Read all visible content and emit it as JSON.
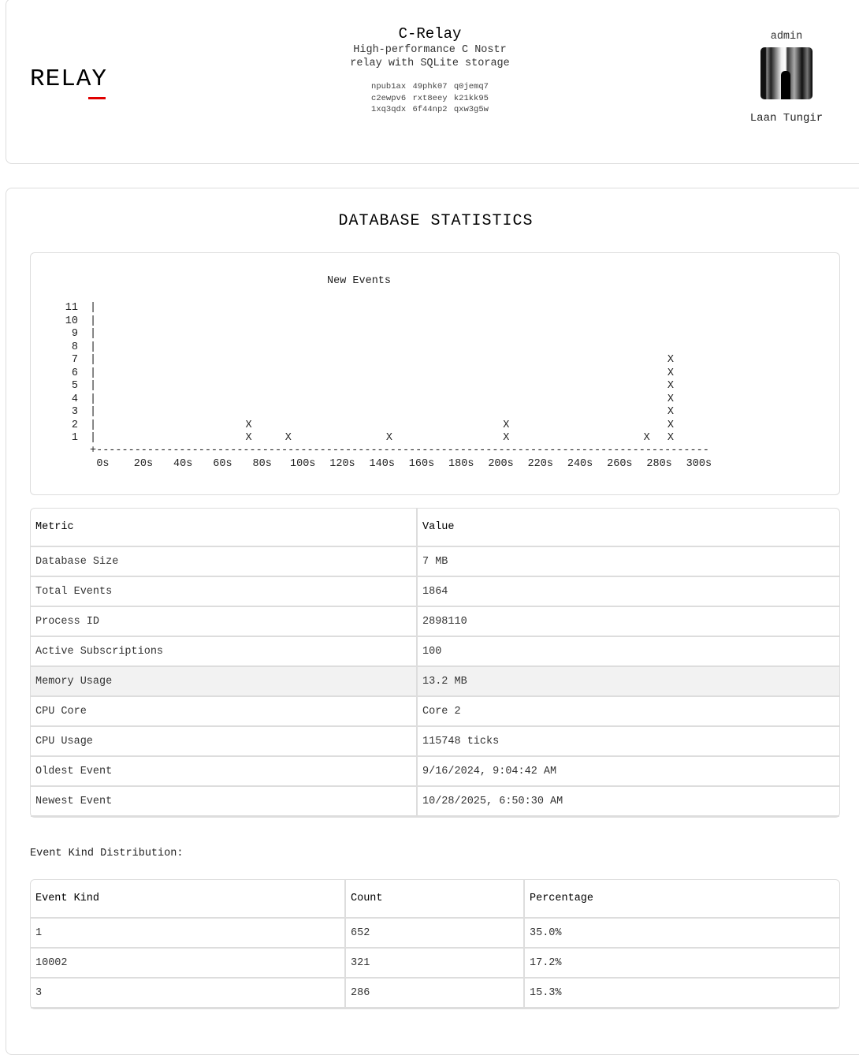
{
  "header": {
    "logo_text": "RELAY",
    "relay_name": "C-Relay",
    "relay_description": "High-performance C Nostr relay with SQLite storage",
    "npub": "npub1ax 49phk07 q0jemq7 c2ewpv6 rxt8eey k21kk95 1xq3qdx 6f44np2 qxw3g5w",
    "user_role": "admin",
    "user_name": "Laan Tungir",
    "accent_color": "#e00000"
  },
  "main": {
    "title": "DATABASE STATISTICS",
    "stats_table": {
      "headers": [
        "Metric",
        "Value"
      ],
      "rows": [
        [
          "Database Size",
          "7 MB"
        ],
        [
          "Total Events",
          "1864"
        ],
        [
          "Process ID",
          "2898110"
        ],
        [
          "Active Subscriptions",
          "100"
        ],
        [
          "Memory Usage",
          "13.2 MB"
        ],
        [
          "CPU Core",
          "Core 2"
        ],
        [
          "CPU Usage",
          "115748 ticks"
        ],
        [
          "Oldest Event",
          "9/16/2024, 9:04:42 AM"
        ],
        [
          "Newest Event",
          "10/28/2025, 6:50:30 AM"
        ]
      ]
    },
    "distribution_label": "Event Kind Distribution:",
    "distribution_table": {
      "headers": [
        "Event Kind",
        "Count",
        "Percentage"
      ],
      "rows": [
        [
          "1",
          "652",
          "35.0%"
        ],
        [
          "10002",
          "321",
          "17.2%"
        ],
        [
          "3",
          "286",
          "15.3%"
        ]
      ]
    }
  },
  "chart_data": {
    "type": "scatter",
    "title": "New Events",
    "marker": "X",
    "x_tick_labels": [
      "0s",
      "20s",
      "40s",
      "60s",
      "80s",
      "100s",
      "120s",
      "140s",
      "160s",
      "180s",
      "200s",
      "220s",
      "240s",
      "260s",
      "280s",
      "300s"
    ],
    "y_tick_labels": [
      "1",
      "2",
      "3",
      "4",
      "5",
      "6",
      "7",
      "8",
      "9",
      "10",
      "11"
    ],
    "xlim": [
      0,
      300
    ],
    "ylim": [
      0,
      11
    ],
    "x": [
      73,
      93,
      144,
      203,
      274,
      286
    ],
    "values": [
      2,
      1,
      1,
      2,
      1,
      7
    ]
  }
}
